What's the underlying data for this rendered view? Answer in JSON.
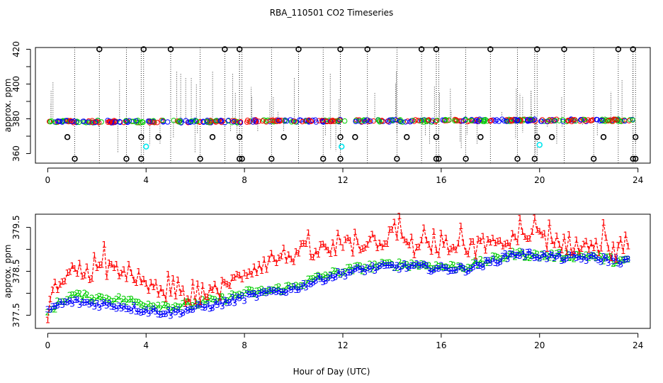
{
  "title": "RBA_110501  CO2 Timeseries",
  "colors": {
    "series1": "#ff0000",
    "series2": "#00cd00",
    "series3": "#0000ff",
    "outlier": "#000000",
    "flag": "#00e5ee"
  },
  "chart_data": [
    {
      "type": "scatter",
      "title": "RBA_110501  CO2 Timeseries",
      "xlabel": "",
      "ylabel": "approx. ppm",
      "xlim": [
        -0.5,
        24.5
      ],
      "ylim": [
        354.5,
        421
      ],
      "xticks": [
        0,
        4,
        8,
        12,
        16,
        20,
        24
      ],
      "yticks": [
        360,
        380,
        400,
        420
      ],
      "yminor": [
        370,
        390,
        410
      ],
      "ytick_labels": [
        "360",
        "380",
        "400",
        "420"
      ],
      "xtick_labels": [
        "0",
        "4",
        "8",
        "12",
        "16",
        "20",
        "24"
      ],
      "band_level": 378.4,
      "highs": [
        2.1,
        3.9,
        5.0,
        7.2,
        7.8,
        10.2,
        11.9,
        13.0,
        15.2,
        15.8,
        18.0,
        19.9,
        21.0,
        23.2,
        23.8
      ],
      "high_value": 420,
      "lows": [
        1.1,
        3.2,
        3.8,
        6.2,
        7.8,
        7.9,
        9.1,
        11.2,
        11.9,
        14.2,
        15.8,
        15.9,
        17.0,
        19.1,
        19.8,
        22.2,
        23.8,
        23.9
      ],
      "low_value": 357,
      "mids": [
        0.8,
        3.8,
        4.5,
        6.7,
        7.8,
        9.6,
        11.9,
        12.5,
        14.6,
        15.8,
        17.6,
        19.9,
        20.5,
        22.6,
        23.9
      ],
      "mid_value": 369.5,
      "flags": [
        {
          "x": 4.0,
          "y": 364
        },
        {
          "x": 11.95,
          "y": 364
        },
        {
          "x": 20.0,
          "y": 365
        }
      ]
    },
    {
      "type": "line",
      "title": "",
      "xlabel": "Hour of Day (UTC)",
      "ylabel": "approx. ppm",
      "xlim": [
        -0.5,
        24.5
      ],
      "ylim": [
        377.2,
        379.8
      ],
      "xticks": [
        0,
        4,
        8,
        12,
        16,
        20,
        24
      ],
      "xtick_labels": [
        "0",
        "4",
        "8",
        "12",
        "16",
        "20",
        "24"
      ],
      "yticks": [
        377.5,
        378.5,
        379.5
      ],
      "yminor": [
        378.0,
        379.0
      ],
      "ytick_labels": [
        "377.5",
        "378.5",
        "379.5"
      ],
      "series": [
        {
          "name": "1",
          "knots_x": [
            0,
            0.5,
            1,
            2,
            3,
            4,
            5,
            6,
            7,
            7.5,
            8,
            9,
            10,
            11,
            12,
            13,
            14,
            15,
            16,
            17,
            18,
            19,
            20,
            21,
            22,
            23,
            23.7
          ],
          "knots_y": [
            377.6,
            378.35,
            378.5,
            378.5,
            378.6,
            378.1,
            377.95,
            378.0,
            378.05,
            378.2,
            378.5,
            378.75,
            378.9,
            378.95,
            379.0,
            379.2,
            379.25,
            379.05,
            379.05,
            379.0,
            379.05,
            379.2,
            379.25,
            379.15,
            379.05,
            378.95,
            378.85
          ],
          "noise": 0.22
        },
        {
          "name": "2",
          "knots_x": [
            0,
            0.5,
            1,
            2,
            3,
            4,
            5,
            6,
            7,
            8,
            9,
            10,
            11,
            12,
            13,
            14,
            15,
            16,
            17,
            18,
            19,
            20,
            21,
            22,
            23,
            23.7
          ],
          "knots_y": [
            377.55,
            377.8,
            377.95,
            377.9,
            377.85,
            377.75,
            377.7,
            377.75,
            377.85,
            378.0,
            378.05,
            378.15,
            378.35,
            378.5,
            378.6,
            378.65,
            378.65,
            378.6,
            378.6,
            378.75,
            378.9,
            378.85,
            378.85,
            378.85,
            378.75,
            378.7
          ],
          "noise": 0.08
        },
        {
          "name": "3",
          "knots_x": [
            0,
            0.5,
            1,
            2,
            3,
            4,
            5,
            6,
            7,
            8,
            9,
            10,
            11,
            12,
            13,
            14,
            15,
            16,
            17,
            18,
            19,
            20,
            21,
            22,
            23,
            23.7
          ],
          "knots_y": [
            377.6,
            377.75,
            377.8,
            377.75,
            377.7,
            377.6,
            377.55,
            377.65,
            377.75,
            377.9,
            378.0,
            378.1,
            378.3,
            378.45,
            378.55,
            378.6,
            378.6,
            378.55,
            378.55,
            378.7,
            378.9,
            378.85,
            378.8,
            378.8,
            378.75,
            378.7
          ],
          "noise": 0.08
        }
      ]
    }
  ]
}
